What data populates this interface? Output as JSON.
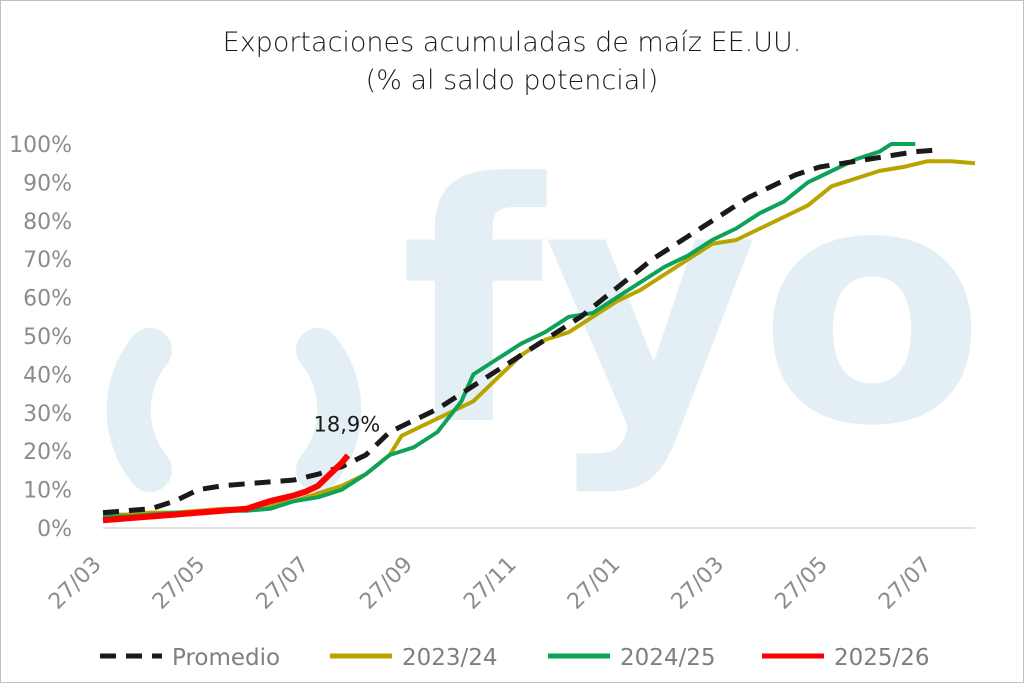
{
  "chart_data": {
    "type": "line",
    "title": "Exportaciones acumuladas de maíz EE.UU.",
    "subtitle": "(% al saldo potencial)",
    "watermark": "fyo",
    "xlabel": "",
    "ylabel": "",
    "x_ticks": [
      "27/03",
      "27/05",
      "27/07",
      "27/09",
      "27/11",
      "27/01",
      "27/03",
      "27/05",
      "27/07"
    ],
    "y_ticks": [
      "0%",
      "10%",
      "20%",
      "30%",
      "40%",
      "50%",
      "60%",
      "70%",
      "80%",
      "90%",
      "100%"
    ],
    "ylim": [
      0,
      100
    ],
    "x_unit": "weeks since 27/03",
    "xlim": [
      0,
      73
    ],
    "grid": false,
    "legend_position": "bottom",
    "annotation": {
      "text": "18,9%",
      "x": 20.5,
      "y": 18.9
    },
    "series": [
      {
        "name": "Promedio",
        "color": "#1a1a1a",
        "style": "dashed",
        "points": [
          [
            0,
            4
          ],
          [
            2,
            4.5
          ],
          [
            4,
            5
          ],
          [
            6,
            7
          ],
          [
            8,
            10
          ],
          [
            10,
            11
          ],
          [
            12,
            11.5
          ],
          [
            14,
            12
          ],
          [
            16,
            12.5
          ],
          [
            18,
            14
          ],
          [
            20,
            16
          ],
          [
            22,
            19
          ],
          [
            24,
            25
          ],
          [
            26,
            28
          ],
          [
            28,
            31
          ],
          [
            30,
            35
          ],
          [
            32,
            39
          ],
          [
            34,
            43
          ],
          [
            36,
            47
          ],
          [
            38,
            51
          ],
          [
            40,
            55
          ],
          [
            42,
            60
          ],
          [
            44,
            65
          ],
          [
            46,
            70
          ],
          [
            48,
            74
          ],
          [
            50,
            78
          ],
          [
            52,
            82
          ],
          [
            54,
            86
          ],
          [
            56,
            89
          ],
          [
            58,
            92
          ],
          [
            60,
            94
          ],
          [
            62,
            95
          ],
          [
            64,
            96
          ],
          [
            66,
            97
          ],
          [
            68,
            98
          ],
          [
            70,
            98.5
          ]
        ]
      },
      {
        "name": "2023/24",
        "color": "#b8a400",
        "style": "solid",
        "points": [
          [
            0,
            3.5
          ],
          [
            2,
            3.5
          ],
          [
            4,
            4
          ],
          [
            6,
            4
          ],
          [
            8,
            4.5
          ],
          [
            10,
            5
          ],
          [
            12,
            5
          ],
          [
            14,
            6
          ],
          [
            16,
            7
          ],
          [
            18,
            9
          ],
          [
            20,
            11
          ],
          [
            22,
            14
          ],
          [
            24,
            19
          ],
          [
            25,
            24
          ],
          [
            27,
            27
          ],
          [
            29,
            30
          ],
          [
            31,
            33
          ],
          [
            33,
            39
          ],
          [
            35,
            45
          ],
          [
            37,
            49
          ],
          [
            39,
            51
          ],
          [
            41,
            55
          ],
          [
            43,
            59
          ],
          [
            45,
            62
          ],
          [
            47,
            66
          ],
          [
            49,
            70
          ],
          [
            51,
            74
          ],
          [
            53,
            75
          ],
          [
            55,
            78
          ],
          [
            57,
            81
          ],
          [
            59,
            84
          ],
          [
            61,
            89
          ],
          [
            63,
            91
          ],
          [
            65,
            93
          ],
          [
            67,
            94
          ],
          [
            69,
            95.5
          ],
          [
            71,
            95.5
          ],
          [
            73,
            95
          ]
        ]
      },
      {
        "name": "2024/25",
        "color": "#0ea15a",
        "style": "solid",
        "points": [
          [
            0,
            3
          ],
          [
            2,
            3
          ],
          [
            4,
            3.5
          ],
          [
            6,
            4
          ],
          [
            8,
            4
          ],
          [
            10,
            4.5
          ],
          [
            12,
            4.5
          ],
          [
            14,
            5
          ],
          [
            16,
            7
          ],
          [
            18,
            8
          ],
          [
            20,
            10
          ],
          [
            22,
            14
          ],
          [
            24,
            19
          ],
          [
            26,
            21
          ],
          [
            28,
            25
          ],
          [
            30,
            33
          ],
          [
            31,
            40
          ],
          [
            33,
            44
          ],
          [
            35,
            48
          ],
          [
            37,
            51
          ],
          [
            39,
            55
          ],
          [
            41,
            56
          ],
          [
            43,
            60
          ],
          [
            45,
            64
          ],
          [
            47,
            68
          ],
          [
            49,
            71
          ],
          [
            51,
            75
          ],
          [
            53,
            78
          ],
          [
            55,
            82
          ],
          [
            57,
            85
          ],
          [
            59,
            90
          ],
          [
            61,
            93
          ],
          [
            63,
            96
          ],
          [
            65,
            98
          ],
          [
            66,
            100
          ],
          [
            68,
            100
          ]
        ]
      },
      {
        "name": "2025/26",
        "color": "#ff0000",
        "style": "solid",
        "points": [
          [
            0,
            2
          ],
          [
            2,
            2.5
          ],
          [
            4,
            3
          ],
          [
            6,
            3.5
          ],
          [
            8,
            4
          ],
          [
            10,
            4.5
          ],
          [
            12,
            5
          ],
          [
            14,
            7
          ],
          [
            16,
            8.5
          ],
          [
            17,
            9.5
          ],
          [
            18,
            11
          ],
          [
            19,
            14
          ],
          [
            20,
            17
          ],
          [
            20.5,
            18.9
          ]
        ]
      }
    ]
  }
}
